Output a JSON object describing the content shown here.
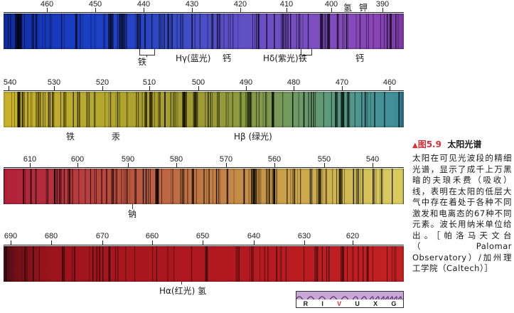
{
  "spectra": [
    {
      "id": "violet-blue",
      "tick_labels": [
        "460",
        "450",
        "440",
        "430",
        "420",
        "410",
        "400",
        "390"
      ],
      "element_labels": [
        "铁",
        "Hγ(蓝光)",
        "钙",
        "Hδ(紫光)铁",
        "钙"
      ],
      "top_labels": [
        "氢",
        "钾"
      ]
    },
    {
      "id": "green-yellow",
      "tick_labels": [
        "540",
        "530",
        "520",
        "510",
        "500",
        "490",
        "480",
        "470",
        "460"
      ],
      "element_labels": [
        "铁",
        "汞",
        "Hβ (绿光)"
      ]
    },
    {
      "id": "orange-yellow",
      "tick_labels": [
        "610",
        "600",
        "590",
        "580",
        "570",
        "560",
        "550",
        "540"
      ],
      "element_labels": [
        "钠"
      ]
    },
    {
      "id": "red",
      "tick_labels": [
        "690",
        "680",
        "670",
        "660",
        "650",
        "640",
        "630",
        "620"
      ],
      "element_labels": [
        "Hα(红光) 氢"
      ]
    }
  ],
  "caption": {
    "marker": "▲",
    "figure_number": "图5.9",
    "title": "太阳光谱",
    "body": "太阳在可见光波段的精细光谱，显示了成千上万黑暗的夫琅禾费（吸收）线，表明在太阳的低层大气中存在着处于各种不同激发和电离态的67种不同元素。波长用纳米单位给出。［帕洛马天文台（Palomar Observatory）/加州理工学院（Caltech）］"
  },
  "rivux": {
    "letters": [
      "R",
      "I",
      "V",
      "U",
      "X",
      "G"
    ],
    "highlighted": "V",
    "highlight_color": "#d3303a"
  }
}
